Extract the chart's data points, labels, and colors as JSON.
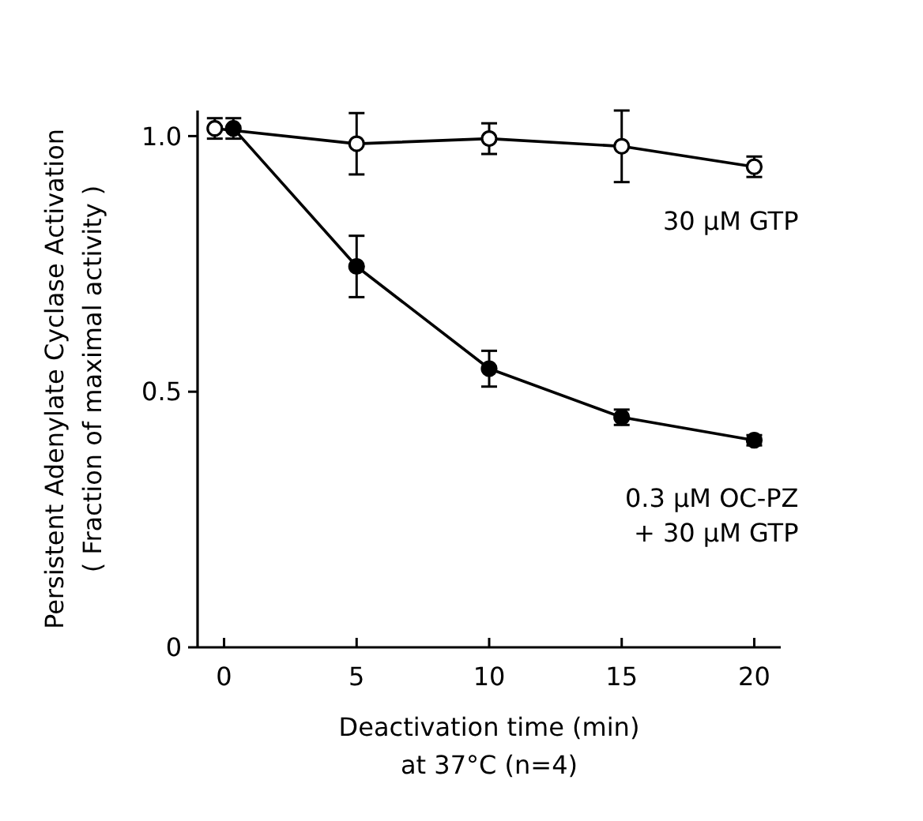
{
  "chart_data": {
    "type": "line",
    "xlabel": "Deactivation time (min)\nat 37°C (n=4)",
    "ylabel": "Persistent Adenylate Cyclase Activation\n( Fraction of maximal activity )",
    "xlim": [
      -1,
      21
    ],
    "ylim": [
      0,
      1.05
    ],
    "xticks": [
      0,
      5,
      10,
      15,
      20
    ],
    "yticks": [
      0,
      0.5,
      {
        "value": 1,
        "label": "1.0"
      }
    ],
    "marker": "circle",
    "line_style": "solid",
    "series": [
      {
        "name": "30 μM GTP",
        "color": "#000000",
        "x": [
          -0.35,
          5,
          10,
          15,
          20
        ],
        "values": [
          1.015,
          0.985,
          0.995,
          0.98,
          0.94
        ],
        "errors": [
          0.02,
          0.06,
          0.03,
          0.07,
          0.02
        ]
      },
      {
        "name": "0.3 μM OC-PZ\n+ 30 μM GTP",
        "color": "#000000",
        "x": [
          0.35,
          5,
          10,
          15,
          20
        ],
        "values": [
          1.015,
          0.745,
          0.545,
          0.45,
          0.405
        ],
        "errors": [
          0.02,
          0.06,
          0.035,
          0.015,
          0.01
        ]
      }
    ]
  }
}
